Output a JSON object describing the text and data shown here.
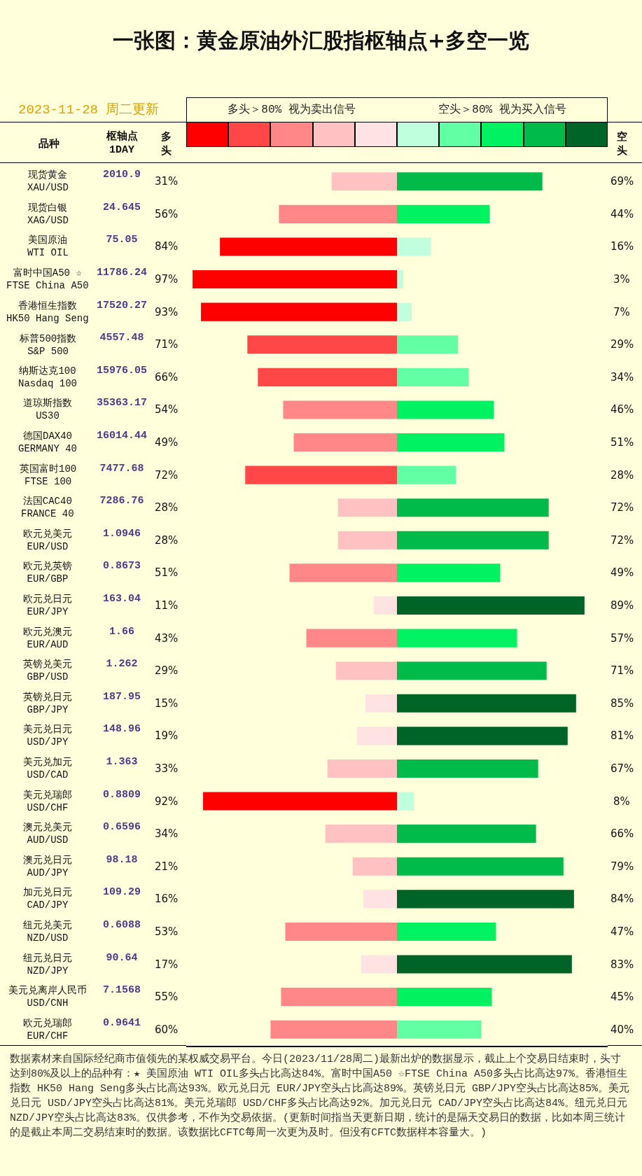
{
  "chart_data": [
    {
      "type": "other",
      "title": "一张图：黄金原油外汇股指枢轴点+多空一览",
      "subtitle": "2023-11-28 周二更新",
      "xlabel": "枢轴点\n1DAY",
      "values": [
        2010.9,
        24.645,
        75.05,
        11786.24,
        17520.27,
        4557.48,
        15976.05,
        35363.17,
        16014.44,
        7477.68,
        7286.76,
        1.0946,
        0.8673,
        163.04,
        1.66,
        1.262,
        187.95,
        148.96,
        1.363,
        0.8809,
        0.6596,
        98.18,
        109.29,
        0.6088,
        90.64,
        7.1568,
        0.9641
      ],
      "data_labels": true,
      "annotations": [
        "数据素材来自国际经纪商市值领先的某权威交易平台。今日(2023/11/28周二)最新出炉的数据显示，截止上个交易日结束时，头寸达到80%及以上的品种有：★ 美国原油 WTI OIL多头占比高达84%。富时中国A50 ☆FTSE China A50多头占比高达97%。香港恒生指数 HK50 Hang Seng多头占比高达93%。欧元兑日元 EUR/JPY空头占比高达89%。英镑兑日元 GBP/JPY空头占比高达85%。美元兑日元 USD/JPY空头占比高达81%。美元兑瑞郎 USD/CHF多头占比高达92%。加元兑日元 CAD/JPY空头占比高达84%。纽元兑日元 NZD/JPY空头占比高达83%。仅供参考，不作为交易依据。(更新时间指当天更新日期，统计的是隔天交易日的数据，比如本周三统计的是截止本周二交易结束时的数据。该数据比CFTC每周一次更为及时。但没有CFTC数据样本容量大。)"
      ]
    },
    {
      "type": "bar",
      "orientation": "horizontal",
      "ylabel": "品种",
      "tick_labels": "y",
      "xlim": [
        100,
        0
      ],
      "categories": [
        "现货黄金\nXAU/USD",
        "现货白银\nXAG/USD",
        "美国原油\nWTI OIL",
        "富时中国A50 ☆\nFTSE China A50",
        "香港恒生指数\nHK50 Hang Seng",
        "标普500指数\nS&P 500",
        "纳斯达克100\nNasdaq 100",
        "道琼斯指数\nUS30",
        "德国DAX40\nGERMANY 40",
        "英国富时100\nFTSE 100",
        "法国CAC40\nFRANCE 40",
        "欧元兑美元\nEUR/USD",
        "欧元兑英镑\nEUR/GBP",
        "欧元兑日元\nEUR/JPY",
        "欧元兑澳元\nEUR/AUD",
        "英镑兑美元\nGBP/USD",
        "英镑兑日元\nGBP/JPY",
        "美元兑日元\nUSD/JPY",
        "美元兑加元\nUSD/CAD",
        "美元兑瑞郎\nUSD/CHF",
        "澳元兑美元\nAUD/USD",
        "澳元兑日元\nAUD/JPY",
        "加元兑日元\nCAD/JPY",
        "纽元兑美元\nNZD/USD",
        "纽元兑日元\nNZD/JPY",
        "美元兑离岸人民币\nUSD/CNH",
        "欧元兑瑞郎\nEUR/CHF"
      ],
      "series": [
        {
          "name": "多头",
          "values": [
            31,
            56,
            84,
            97,
            93,
            71,
            66,
            54,
            49,
            72,
            28,
            28,
            51,
            11,
            43,
            29,
            15,
            19,
            33,
            92,
            34,
            21,
            16,
            53,
            17,
            55,
            60
          ],
          "colors": [
            "#ffc1c1",
            "#ff8787",
            "#ff0000",
            "#ff0000",
            "#ff0000",
            "#ff4747",
            "#ff4747",
            "#ff8787",
            "#ff8787",
            "#ff4747",
            "#ffc1c1",
            "#ffc1c1",
            "#ff8787",
            "#ffe3e3",
            "#ff8787",
            "#ffc1c1",
            "#ffe3e3",
            "#ffe3e3",
            "#ffc1c1",
            "#ff0000",
            "#ffc1c1",
            "#ffc1c1",
            "#ffe3e3",
            "#ff8787",
            "#ffe3e3",
            "#ff8787",
            "#ff8787"
          ],
          "value_labels": [
            "31%",
            "56%",
            "84%",
            "97%",
            "93%",
            "71%",
            "66%",
            "54%",
            "49%",
            "72%",
            "28%",
            "28%",
            "51%",
            "11%",
            "43%",
            "29%",
            "15%",
            "19%",
            "33%",
            "92%",
            "34%",
            "21%",
            "16%",
            "53%",
            "17%",
            "55%",
            "60%"
          ]
        }
      ],
      "annotations": [
        "多头＞80% 视为卖出信号"
      ]
    },
    {
      "type": "bar",
      "orientation": "horizontal",
      "tick_labels": false,
      "xlim": [
        0,
        100
      ],
      "categories": [
        null,
        null,
        null,
        null,
        null,
        null,
        null,
        null,
        null,
        null,
        null,
        null,
        null,
        null,
        null,
        null,
        null,
        null,
        null,
        null,
        null,
        null,
        null,
        null,
        null,
        null,
        null
      ],
      "series": [
        {
          "name": "空头",
          "values": [
            69,
            44,
            16,
            3,
            7,
            29,
            34,
            46,
            51,
            28,
            72,
            72,
            49,
            89,
            57,
            71,
            85,
            81,
            67,
            8,
            66,
            79,
            84,
            47,
            83,
            45,
            40
          ],
          "colors": [
            "#00ba4a",
            "#00f261",
            "#bfffdd",
            "#bfffdd",
            "#bfffdd",
            "#63ffa4",
            "#63ffa4",
            "#00f261",
            "#00f261",
            "#63ffa4",
            "#00ba4a",
            "#00ba4a",
            "#00f261",
            "#006427",
            "#00f261",
            "#00ba4a",
            "#006427",
            "#006427",
            "#00ba4a",
            "#bfffdd",
            "#00ba4a",
            "#00ba4a",
            "#006427",
            "#00f261",
            "#006427",
            "#00f261",
            "#63ffa4"
          ],
          "value_labels": [
            "69%",
            "44%",
            "16%",
            "3%",
            "7%",
            "29%",
            "34%",
            "46%",
            "51%",
            "28%",
            "72%",
            "72%",
            "49%",
            "89%",
            "57%",
            "71%",
            "85%",
            "81%",
            "67%",
            "8%",
            "66%",
            "79%",
            "84%",
            "47%",
            "83%",
            "45%",
            "40%"
          ]
        }
      ],
      "annotations": [
        "空头＞80% 视为买入信号"
      ]
    }
  ]
}
